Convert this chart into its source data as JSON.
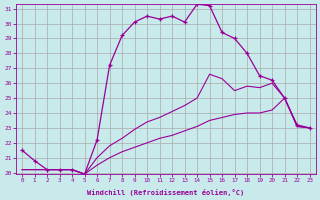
{
  "xlabel": "Windchill (Refroidissement éolien,°C)",
  "bg_color": "#c8eaea",
  "line_color": "#990099",
  "grid_color": "#aaaaaa",
  "hours": [
    0,
    1,
    2,
    3,
    4,
    5,
    6,
    7,
    8,
    9,
    10,
    11,
    12,
    13,
    14,
    15,
    16,
    17,
    18,
    19,
    20,
    21,
    22,
    23
  ],
  "temp": [
    21.5,
    20.8,
    20.2,
    20.2,
    20.2,
    19.9,
    22.2,
    27.2,
    29.2,
    30.1,
    30.5,
    30.3,
    30.5,
    30.1,
    31.3,
    31.2,
    29.4,
    29.0,
    28.0,
    26.5,
    26.2,
    25.0,
    23.2,
    23.0
  ],
  "wc_high": [
    20.2,
    20.2,
    20.2,
    20.2,
    20.2,
    19.9,
    21.0,
    21.8,
    22.3,
    22.9,
    23.4,
    23.7,
    24.1,
    24.5,
    25.0,
    26.6,
    26.3,
    25.5,
    25.8,
    25.7,
    26.0,
    25.0,
    23.1,
    23.0
  ],
  "wc_low": [
    20.2,
    20.2,
    20.2,
    20.2,
    20.2,
    19.9,
    20.5,
    21.0,
    21.4,
    21.7,
    22.0,
    22.3,
    22.5,
    22.8,
    23.1,
    23.5,
    23.7,
    23.9,
    24.0,
    24.0,
    24.2,
    25.0,
    23.1,
    23.0
  ],
  "ylim": [
    19.9,
    31.3
  ],
  "yticks": [
    20,
    21,
    22,
    23,
    24,
    25,
    26,
    27,
    28,
    29,
    30,
    31
  ]
}
